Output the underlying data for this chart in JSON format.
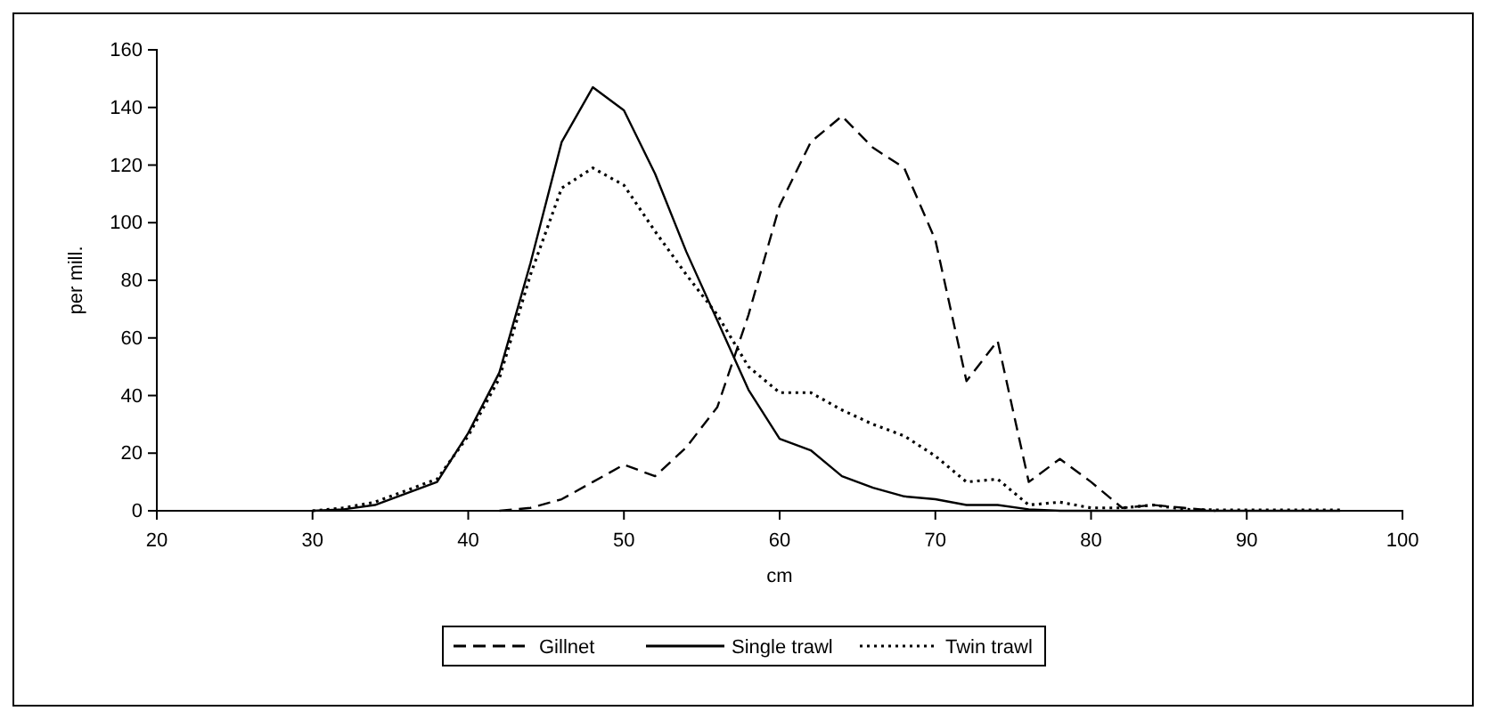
{
  "chart_data": {
    "type": "line",
    "xlabel": "cm",
    "ylabel": "per mill.",
    "x": [
      30,
      32,
      34,
      36,
      38,
      40,
      42,
      44,
      46,
      48,
      50,
      52,
      54,
      56,
      58,
      60,
      62,
      64,
      66,
      68,
      70,
      72,
      74,
      76,
      78,
      80,
      82,
      84,
      86,
      88,
      90,
      92,
      94,
      96
    ],
    "series": [
      {
        "name": "Gillnet",
        "color": "#000000",
        "line_style": "dashed",
        "values": [
          null,
          null,
          null,
          null,
          null,
          null,
          0,
          1,
          4,
          10,
          16,
          12,
          22,
          36,
          68,
          106,
          128,
          137,
          126,
          119,
          94,
          45,
          59,
          10,
          18,
          10,
          1,
          2,
          1,
          0,
          null,
          null,
          null,
          null
        ]
      },
      {
        "name": "Single trawl",
        "color": "#000000",
        "line_style": "solid",
        "values": [
          0,
          0.5,
          2,
          6,
          10,
          27,
          48,
          86,
          128,
          147,
          139,
          117,
          90,
          66,
          42,
          25,
          21,
          12,
          8,
          5,
          4,
          2,
          2,
          0.5,
          0,
          0,
          0,
          0,
          0,
          0,
          0,
          0,
          0,
          0
        ]
      },
      {
        "name": "Twin trawl",
        "color": "#000000",
        "line_style": "dotted",
        "values": [
          0,
          1,
          3,
          7,
          11,
          26,
          46,
          82,
          112,
          119,
          113,
          97,
          82,
          68,
          50,
          41,
          41,
          35,
          30,
          26,
          19,
          10,
          11,
          2,
          3,
          1,
          1,
          2,
          0.5,
          0.3,
          0.3,
          0.3,
          0.3,
          0.3
        ]
      }
    ],
    "xlim": [
      20,
      100
    ],
    "xticks": [
      20,
      30,
      40,
      50,
      60,
      70,
      80,
      90,
      100
    ],
    "ylim": [
      0,
      160
    ],
    "yticks": [
      0,
      20,
      40,
      60,
      80,
      100,
      120,
      140,
      160
    ],
    "grid": false,
    "legend": "bottom",
    "marker": "none"
  }
}
